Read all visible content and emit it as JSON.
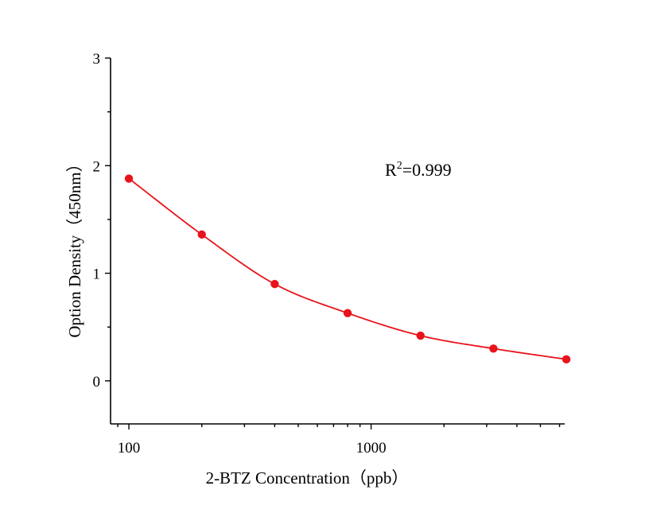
{
  "chart_data": {
    "type": "scatter",
    "xlabel": "2-BTZ Concentration（ppb）",
    "ylabel": "Option Density（450nm）",
    "x_scale": "log",
    "xlim": [
      84,
      6300
    ],
    "ylim": [
      -0.4,
      3
    ],
    "x_tick_labels": [
      {
        "value": 100,
        "label": "100"
      },
      {
        "value": 1000,
        "label": "1000"
      }
    ],
    "y_tick_labels": [
      {
        "value": 0,
        "label": "0"
      },
      {
        "value": 1,
        "label": "1"
      },
      {
        "value": 2,
        "label": "2"
      },
      {
        "value": 3,
        "label": "3"
      }
    ],
    "annotation": {
      "prefix": "R",
      "sup": "2",
      "suffix": "=0.999"
    },
    "grid": false,
    "legend": "none",
    "series": [
      {
        "color": "#e8131b",
        "points": [
          {
            "x": 100,
            "y": 1.88
          },
          {
            "x": 200,
            "y": 1.36
          },
          {
            "x": 400,
            "y": 0.9
          },
          {
            "x": 800,
            "y": 0.63
          },
          {
            "x": 1600,
            "y": 0.42
          },
          {
            "x": 3200,
            "y": 0.3
          },
          {
            "x": 6400,
            "y": 0.2
          }
        ]
      }
    ]
  }
}
